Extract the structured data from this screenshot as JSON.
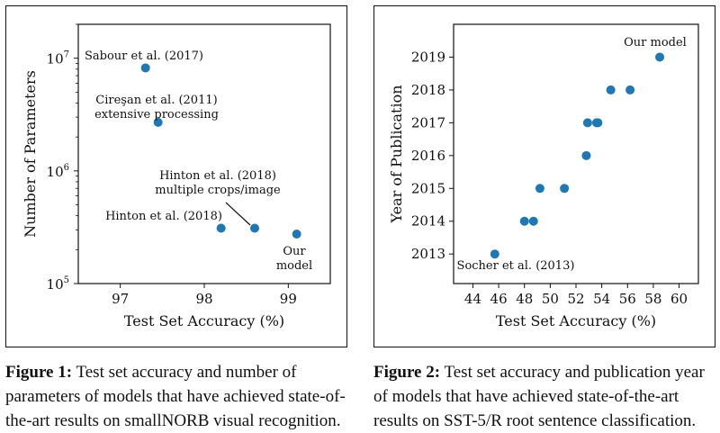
{
  "figure1": {
    "caption_label": "Figure 1:",
    "caption_text": " Test set accuracy and number of parameters of models that have achieved state-of-the-art results on smallNORB visual recognition."
  },
  "figure2": {
    "caption_label": "Figure 2:",
    "caption_text": " Test set accuracy and publication year of models that have achieved state-of-the-art results on SST-5/R root sentence classification."
  },
  "chart_data": [
    {
      "type": "scatter",
      "xlabel": "Test Set Accuracy (%)",
      "ylabel": "Number of Parameters",
      "xlim": [
        96.5,
        99.5
      ],
      "ylim": [
        100000,
        20000000
      ],
      "yscale": "log",
      "xticks": [
        97,
        98,
        99
      ],
      "yticks": [
        100000,
        1000000,
        10000000
      ],
      "ytick_labels": [
        [
          "10",
          "5"
        ],
        [
          "10",
          "6"
        ],
        [
          "10",
          "7"
        ]
      ],
      "color": "#1f77b4",
      "grid": false,
      "points": [
        {
          "x": 97.3,
          "y": 8200000
        },
        {
          "x": 97.45,
          "y": 2700000
        },
        {
          "x": 98.2,
          "y": 310000
        },
        {
          "x": 98.6,
          "y": 310000
        },
        {
          "x": 99.1,
          "y": 275000
        }
      ],
      "annotations": [
        {
          "lines": [
            "Sabour et al. (2017)"
          ]
        },
        {
          "lines": [
            "Cireşan et al. (2011)",
            "extensive processing"
          ]
        },
        {
          "lines": [
            "Hinton et al. (2018)"
          ]
        },
        {
          "lines": [
            "Hinton et al. (2018)",
            "multiple crops/image"
          ]
        },
        {
          "lines": [
            "Our",
            "model"
          ]
        }
      ]
    },
    {
      "type": "scatter",
      "xlabel": "Test Set Accuracy (%)",
      "ylabel": "Year of Publication",
      "xlim": [
        42.5,
        61.5
      ],
      "ylim": [
        2012.1,
        2020.0
      ],
      "xticks": [
        44,
        46,
        48,
        50,
        52,
        54,
        56,
        58,
        60
      ],
      "yticks": [
        2013,
        2014,
        2015,
        2016,
        2017,
        2018,
        2019
      ],
      "color": "#1f77b4",
      "grid": false,
      "points": [
        {
          "x": 45.7,
          "y": 2013
        },
        {
          "x": 48.0,
          "y": 2014
        },
        {
          "x": 48.7,
          "y": 2014
        },
        {
          "x": 49.2,
          "y": 2015
        },
        {
          "x": 51.1,
          "y": 2015
        },
        {
          "x": 52.8,
          "y": 2016
        },
        {
          "x": 52.9,
          "y": 2017
        },
        {
          "x": 53.6,
          "y": 2017
        },
        {
          "x": 53.7,
          "y": 2017
        },
        {
          "x": 54.7,
          "y": 2018
        },
        {
          "x": 56.2,
          "y": 2018
        },
        {
          "x": 58.5,
          "y": 2019
        }
      ],
      "annotations": [
        {
          "lines": [
            "Socher et al. (2013)"
          ]
        },
        {
          "lines": [
            "Our model"
          ]
        }
      ]
    }
  ]
}
